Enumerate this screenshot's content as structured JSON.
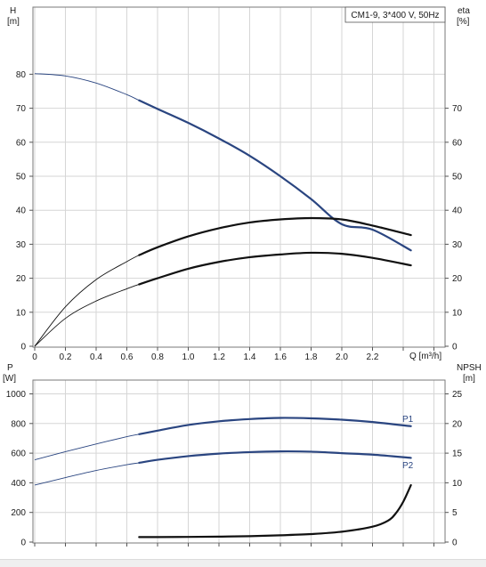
{
  "chart_data": [
    {
      "type": "line",
      "panel": "performance",
      "legend": "CM1-9, 3*400 V, 50Hz",
      "legend_position": "top-right",
      "grid": true,
      "x_axis": {
        "label": "Q [m³/h]",
        "range": [
          0,
          2.7
        ],
        "ticks": [
          0,
          0.2,
          0.4,
          0.6,
          0.8,
          1.0,
          1.2,
          1.4,
          1.6,
          1.8,
          2.0,
          2.2
        ],
        "tick_labels": [
          "0",
          "0.2",
          "0.4",
          "0.6",
          "0.8",
          "1.0",
          "1.2",
          "1.4",
          "1.6",
          "1.8",
          "2.0",
          "2.2"
        ]
      },
      "y_left": {
        "label_lines": [
          "H",
          "[m]"
        ],
        "range": [
          0,
          97
        ],
        "ticks": [
          0,
          10,
          20,
          30,
          40,
          50,
          60,
          70,
          80
        ],
        "tick_labels": [
          "0",
          "10",
          "20",
          "30",
          "40",
          "50",
          "60",
          "70",
          "80"
        ]
      },
      "y_right": {
        "label_lines": [
          "eta",
          "[%]"
        ],
        "range": [
          0,
          97
        ],
        "ticks": [
          0,
          10,
          20,
          30,
          40,
          50,
          60,
          70
        ],
        "tick_labels": [
          "0",
          "10",
          "20",
          "30",
          "40",
          "50",
          "60",
          "70"
        ]
      },
      "series": [
        {
          "id": "head",
          "axis": "left",
          "color": "#2a4580",
          "operating_range": [
            0.68,
            2.45
          ],
          "x": [
            0,
            0.2,
            0.4,
            0.6,
            0.68,
            0.8,
            1.0,
            1.2,
            1.4,
            1.6,
            1.8,
            2.0,
            2.2,
            2.45
          ],
          "y": [
            80.2,
            79.5,
            77.4,
            74.0,
            72.3,
            69.8,
            65.7,
            61.1,
            56.0,
            50.0,
            43.3,
            35.9,
            34.3,
            28.2
          ]
        },
        {
          "id": "efficiency-upper",
          "axis": "right",
          "color": "#111111",
          "operating_range": [
            0.68,
            2.45
          ],
          "x": [
            0,
            0.2,
            0.4,
            0.6,
            0.68,
            0.8,
            1.0,
            1.2,
            1.4,
            1.6,
            1.8,
            2.0,
            2.2,
            2.45
          ],
          "y": [
            0,
            11.6,
            19.6,
            24.9,
            26.8,
            29.1,
            32.3,
            34.7,
            36.4,
            37.3,
            37.7,
            37.3,
            35.5,
            32.7
          ]
        },
        {
          "id": "efficiency-lower",
          "axis": "right",
          "color": "#111111",
          "operating_range": [
            0.68,
            2.45
          ],
          "x": [
            0,
            0.2,
            0.4,
            0.6,
            0.68,
            0.8,
            1.0,
            1.2,
            1.4,
            1.6,
            1.8,
            2.0,
            2.2,
            2.45
          ],
          "y": [
            0,
            8.2,
            13.3,
            16.9,
            18.2,
            20.0,
            22.8,
            24.8,
            26.2,
            27.0,
            27.5,
            27.2,
            26.0,
            23.8
          ]
        }
      ]
    },
    {
      "type": "line",
      "panel": "power-npsh",
      "grid": true,
      "x_axis": {
        "range": [
          0,
          2.7
        ],
        "ticks": [
          0,
          0.2,
          0.4,
          0.6,
          0.8,
          1.0,
          1.2,
          1.4,
          1.6,
          1.8,
          2.0,
          2.2
        ]
      },
      "y_left": {
        "label_lines": [
          "P",
          "[W]"
        ],
        "range": [
          0,
          1100
        ],
        "ticks": [
          0,
          200,
          400,
          600,
          800,
          1000
        ],
        "tick_labels": [
          "0",
          "200",
          "400",
          "600",
          "800",
          "1000"
        ]
      },
      "y_right": {
        "label_lines": [
          "NPSH",
          "[m]"
        ],
        "range": [
          0,
          27.5
        ],
        "ticks": [
          0,
          5,
          10,
          15,
          20,
          25
        ],
        "tick_labels": [
          "0",
          "5",
          "10",
          "15",
          "20",
          "25"
        ]
      },
      "series": [
        {
          "id": "P1",
          "name": "P1",
          "axis": "left",
          "color": "#2a4580",
          "operating_range": [
            0.68,
            2.45
          ],
          "x": [
            0,
            0.2,
            0.4,
            0.6,
            0.68,
            0.8,
            1.0,
            1.2,
            1.4,
            1.6,
            1.8,
            2.0,
            2.2,
            2.45
          ],
          "y": [
            555,
            610,
            662,
            711,
            728,
            752,
            790,
            815,
            830,
            838,
            835,
            826,
            810,
            782
          ]
        },
        {
          "id": "P2",
          "name": "P2",
          "axis": "left",
          "color": "#2a4580",
          "operating_range": [
            0.68,
            2.45
          ],
          "x": [
            0,
            0.2,
            0.4,
            0.6,
            0.68,
            0.8,
            1.0,
            1.2,
            1.4,
            1.6,
            1.8,
            2.0,
            2.2,
            2.45
          ],
          "y": [
            385,
            435,
            483,
            522,
            535,
            555,
            580,
            597,
            607,
            612,
            610,
            600,
            590,
            568
          ]
        },
        {
          "id": "NPSH",
          "axis": "right",
          "color": "#111111",
          "operating_range": [
            0.68,
            2.45
          ],
          "x": [
            0.68,
            0.8,
            1.0,
            1.2,
            1.4,
            1.6,
            1.8,
            2.0,
            2.2,
            2.3,
            2.35,
            2.4,
            2.45
          ],
          "y": [
            0.85,
            0.85,
            0.87,
            0.92,
            1.0,
            1.15,
            1.35,
            1.75,
            2.6,
            3.6,
            4.8,
            6.8,
            9.6
          ]
        }
      ]
    }
  ]
}
